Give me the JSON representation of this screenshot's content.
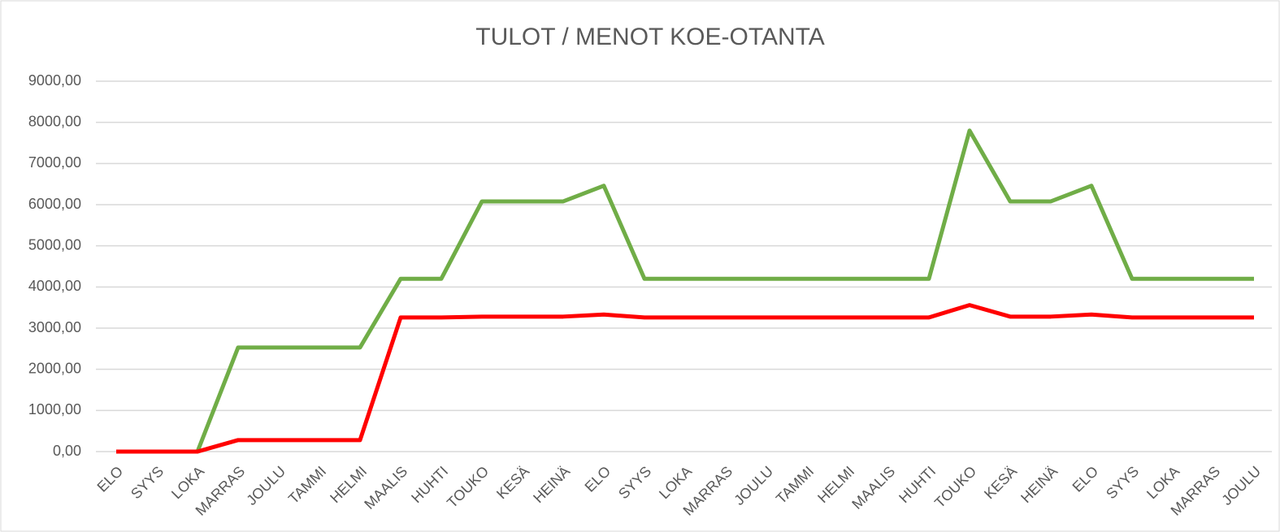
{
  "chart_data": {
    "type": "line",
    "title": "TULOT / MENOT KOE-OTANTA",
    "categories": [
      "ELO",
      "SYYS",
      "LOKA",
      "MARRAS",
      "JOULU",
      "TAMMI",
      "HELMI",
      "MAALIS",
      "HUHTI",
      "TOUKO",
      "KESÄ",
      "HEINÄ",
      "ELO",
      "SYYS",
      "LOKA",
      "MARRAS",
      "JOULU",
      "TAMMI",
      "HELMI",
      "MAALIS",
      "HUHTI",
      "TOUKO",
      "KESÄ",
      "HEINÄ",
      "ELO",
      "SYYS",
      "LOKA",
      "MARRAS",
      "JOULU"
    ],
    "series": [
      {
        "color": "#70ad47",
        "values": [
          0,
          0,
          0,
          2530,
          2530,
          2530,
          2530,
          4200,
          4200,
          6080,
          6080,
          6080,
          6460,
          4200,
          4200,
          4200,
          4200,
          4200,
          4200,
          4200,
          4200,
          7800,
          6080,
          6080,
          6460,
          4200,
          4200,
          4200,
          4200
        ]
      },
      {
        "color": "#ff0000",
        "values": [
          0,
          0,
          0,
          280,
          280,
          280,
          280,
          3260,
          3260,
          3280,
          3280,
          3280,
          3330,
          3260,
          3260,
          3260,
          3260,
          3260,
          3260,
          3260,
          3260,
          3560,
          3280,
          3280,
          3330,
          3260,
          3260,
          3260,
          3260
        ]
      }
    ],
    "ylim": [
      0,
      9000
    ],
    "yticks": [
      {
        "value": 0,
        "label": "0,00"
      },
      {
        "value": 1000,
        "label": "1000,00"
      },
      {
        "value": 2000,
        "label": "2000,00"
      },
      {
        "value": 3000,
        "label": "3000,00"
      },
      {
        "value": 4000,
        "label": "4000,00"
      },
      {
        "value": 5000,
        "label": "5000,00"
      },
      {
        "value": 6000,
        "label": "6000,00"
      },
      {
        "value": 7000,
        "label": "7000,00"
      },
      {
        "value": 8000,
        "label": "8000,00"
      },
      {
        "value": 9000,
        "label": "9000,00"
      }
    ],
    "grid": true
  }
}
